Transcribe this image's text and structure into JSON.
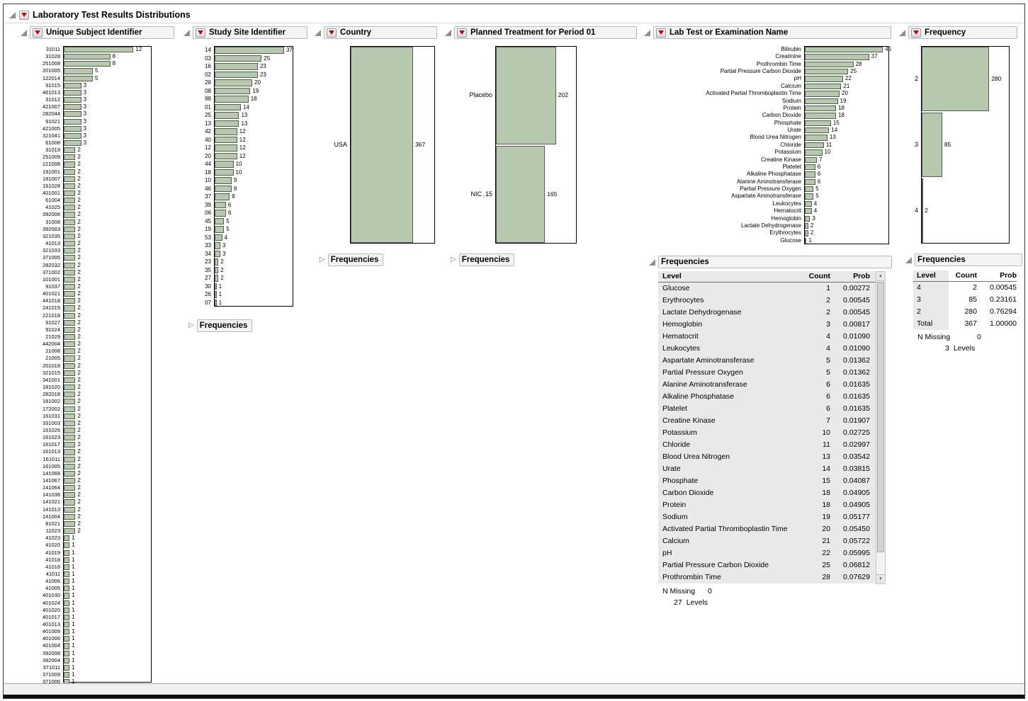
{
  "window": {
    "title": "Laboratory Test Results Distributions"
  },
  "labels": {
    "frequencies": "Frequencies",
    "n_missing": "N Missing",
    "levels": "Levels"
  },
  "panels": {
    "subject": {
      "title": "Unique Subject Identifier"
    },
    "site": {
      "title": "Study Site Identifier"
    },
    "country": {
      "title": "Country"
    },
    "treatment": {
      "title": "Planned Treatment for Period 01"
    },
    "labtest": {
      "title": "Lab Test or Examination Name"
    },
    "frequency": {
      "title": "Frequency"
    }
  },
  "chart_data": [
    {
      "name": "unique-subject-identifier",
      "type": "bar",
      "orientation": "horizontal",
      "title": "Unique Subject Identifier",
      "categories": [
        "31011",
        "31028",
        "251008",
        "201005",
        "122014",
        "91015",
        "461013",
        "31012",
        "421007",
        "282044",
        "91021",
        "421005",
        "321041",
        "61008",
        "31019",
        "251009",
        "221008",
        "191001",
        "181007",
        "161028",
        "401001",
        "61004",
        "41025",
        "392006",
        "31008",
        "392003",
        "321035",
        "41013",
        "321033",
        "371005",
        "282032",
        "371002",
        "101001",
        "91037",
        "401021",
        "441018",
        "241015",
        "221018",
        "91027",
        "91024",
        "21029",
        "442004",
        "21008",
        "21005",
        "201018",
        "321015",
        "341001",
        "181020",
        "282018",
        "181002",
        "172002",
        "161031",
        "331003",
        "161026",
        "161023",
        "161017",
        "161013",
        "161011",
        "161005",
        "141068",
        "141067",
        "141064",
        "141038",
        "141021",
        "141013",
        "141004",
        "81021",
        "11023",
        "41023",
        "41020",
        "41019",
        "41018",
        "41016",
        "41011",
        "41006",
        "41005",
        "401030",
        "401024",
        "401020",
        "401017",
        "401013",
        "401009",
        "401006",
        "401004",
        "392008",
        "392004",
        "371011",
        "371009",
        "371006"
      ],
      "values": [
        12,
        8,
        8,
        5,
        5,
        3,
        3,
        3,
        3,
        3,
        3,
        3,
        3,
        3,
        2,
        2,
        2,
        2,
        2,
        2,
        2,
        2,
        2,
        2,
        2,
        2,
        2,
        2,
        2,
        2,
        2,
        2,
        2,
        2,
        2,
        2,
        2,
        2,
        2,
        2,
        2,
        2,
        2,
        2,
        2,
        2,
        2,
        2,
        2,
        2,
        2,
        2,
        2,
        2,
        2,
        2,
        2,
        2,
        2,
        2,
        2,
        2,
        2,
        2,
        2,
        2,
        2,
        2,
        1,
        1,
        1,
        1,
        1,
        1,
        1,
        1,
        1,
        1,
        1,
        1,
        1,
        1,
        1,
        1,
        1,
        1,
        1,
        1,
        1
      ]
    },
    {
      "name": "study-site-identifier",
      "type": "bar",
      "orientation": "horizontal",
      "title": "Study Site Identifier",
      "categories": [
        "14",
        "03",
        "16",
        "02",
        "28",
        "08",
        "98",
        "01",
        "25",
        "13",
        "42",
        "40",
        "12",
        "20",
        "44",
        "18",
        "10",
        "46",
        "37",
        "39",
        "06",
        "45",
        "19",
        "53",
        "33",
        "34",
        "23",
        "35",
        "27",
        "30",
        "26",
        "07"
      ],
      "values": [
        37,
        25,
        23,
        23,
        20,
        19,
        18,
        14,
        13,
        13,
        12,
        12,
        12,
        12,
        10,
        10,
        9,
        9,
        8,
        6,
        6,
        5,
        5,
        4,
        3,
        3,
        2,
        2,
        2,
        1,
        1,
        1
      ]
    },
    {
      "name": "country",
      "type": "bar",
      "orientation": "horizontal",
      "title": "Country",
      "categories": [
        "USA"
      ],
      "values": [
        367
      ]
    },
    {
      "name": "planned-treatment-period-01",
      "type": "bar",
      "orientation": "horizontal",
      "title": "Planned Treatment for Period 01",
      "categories": [
        "Placebo",
        "NIC .15"
      ],
      "values": [
        202,
        165
      ]
    },
    {
      "name": "lab-test-or-examination-name",
      "type": "bar",
      "orientation": "horizontal",
      "title": "Lab Test or Examination Name",
      "categories": [
        "Bilirubin",
        "Creatinine",
        "Prothrombin Time",
        "Partial Pressure Carbon Dioxide",
        "pH",
        "Calcium",
        "Activated Partial Thromboplastin Time",
        "Sodium",
        "Protein",
        "Carbon Dioxide",
        "Phosphate",
        "Urate",
        "Blood Urea Nitrogen",
        "Chloride",
        "Potassium",
        "Creatine Kinase",
        "Platelet",
        "Alkaline Phosphatase",
        "Alanine Aminotransferase",
        "Partial Pressure Oxygen",
        "Aspartate Aminotransferase",
        "Leukocytes",
        "Hematocrit",
        "Hemoglobin",
        "Lactate Dehydrogenase",
        "Erythrocytes",
        "Glucose"
      ],
      "values": [
        45,
        37,
        28,
        25,
        22,
        21,
        20,
        19,
        18,
        18,
        15,
        14,
        13,
        11,
        10,
        7,
        6,
        6,
        6,
        5,
        5,
        4,
        4,
        3,
        2,
        2,
        1
      ]
    },
    {
      "name": "frequency",
      "type": "bar",
      "orientation": "horizontal",
      "title": "Frequency",
      "categories": [
        "2",
        "3",
        "4"
      ],
      "values": [
        280,
        85,
        2
      ]
    }
  ],
  "tables": {
    "labtest": {
      "columns": [
        "Level",
        "Count",
        "Prob"
      ],
      "rows": [
        [
          "Glucose",
          1,
          "0.00272"
        ],
        [
          "Erythrocytes",
          2,
          "0.00545"
        ],
        [
          "Lactate Dehydrogenase",
          2,
          "0.00545"
        ],
        [
          "Hemoglobin",
          3,
          "0.00817"
        ],
        [
          "Hematocrit",
          4,
          "0.01090"
        ],
        [
          "Leukocytes",
          4,
          "0.01090"
        ],
        [
          "Aspartate Aminotransferase",
          5,
          "0.01362"
        ],
        [
          "Partial Pressure Oxygen",
          5,
          "0.01362"
        ],
        [
          "Alanine Aminotransferase",
          6,
          "0.01635"
        ],
        [
          "Alkaline Phosphatase",
          6,
          "0.01635"
        ],
        [
          "Platelet",
          6,
          "0.01635"
        ],
        [
          "Creatine Kinase",
          7,
          "0.01907"
        ],
        [
          "Potassium",
          10,
          "0.02725"
        ],
        [
          "Chloride",
          11,
          "0.02997"
        ],
        [
          "Blood Urea Nitrogen",
          13,
          "0.03542"
        ],
        [
          "Urate",
          14,
          "0.03815"
        ],
        [
          "Phosphate",
          15,
          "0.04087"
        ],
        [
          "Carbon Dioxide",
          18,
          "0.04905"
        ],
        [
          "Protein",
          18,
          "0.04905"
        ],
        [
          "Sodium",
          19,
          "0.05177"
        ],
        [
          "Activated Partial Thromboplastin Time",
          20,
          "0.05450"
        ],
        [
          "Calcium",
          21,
          "0.05722"
        ],
        [
          "pH",
          22,
          "0.05995"
        ],
        [
          "Partial Pressure Carbon Dioxide",
          25,
          "0.06812"
        ],
        [
          "Prothrombin Time",
          28,
          "0.07629"
        ]
      ],
      "n_missing": "0",
      "levels_count": "27"
    },
    "frequency": {
      "columns": [
        "Level",
        "Count",
        "Prob"
      ],
      "rows": [
        [
          "4",
          2,
          "0.00545"
        ],
        [
          "3",
          85,
          "0.23161"
        ],
        [
          "2",
          280,
          "0.76294"
        ],
        [
          "Total",
          367,
          "1.00000"
        ]
      ],
      "n_missing": "0",
      "levels_count": "3"
    }
  }
}
